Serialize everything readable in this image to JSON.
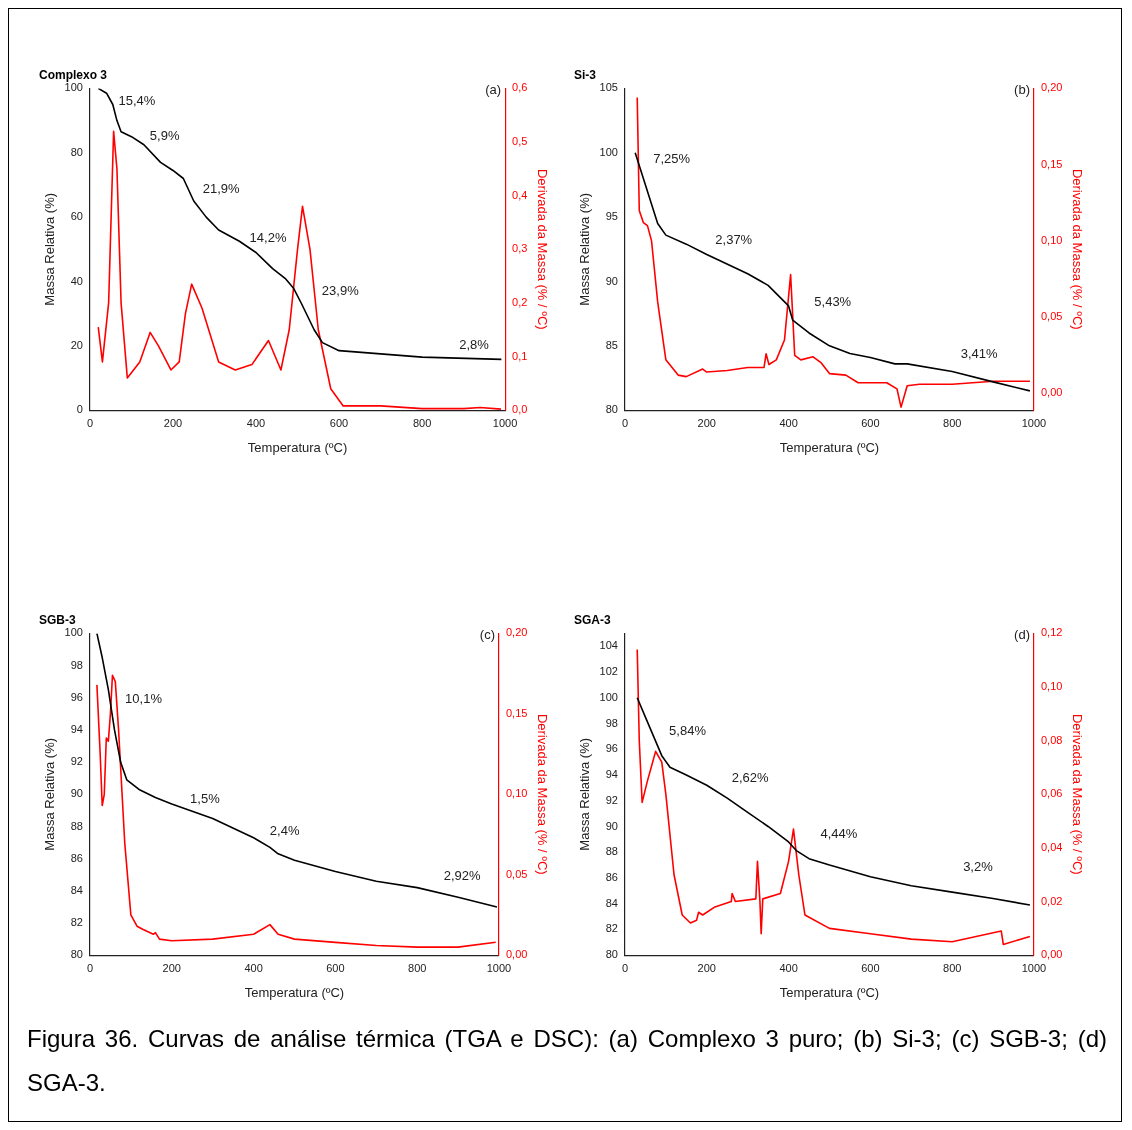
{
  "chart_data": [
    {
      "type": "line",
      "title": "Complexo 3",
      "xlabel": "Temperatura (ºC)",
      "ylabel": "Massa Relativa (%)",
      "y2label": "Derivada da Massa (% / ºC)",
      "xlim": [
        0,
        1000
      ],
      "xticks": [
        0,
        200,
        400,
        600,
        800,
        1000
      ],
      "ylim": [
        0,
        100
      ],
      "yticks": [
        0,
        20,
        40,
        60,
        80,
        100
      ],
      "y2lim": [
        0,
        0.6
      ],
      "y2ticks": [
        {
          "value": 0,
          "label": "0,0"
        },
        {
          "value": 0.1,
          "label": "0,1"
        },
        {
          "value": 0.2,
          "label": "0,2"
        },
        {
          "value": 0.3,
          "label": "0,3"
        },
        {
          "value": 0.4,
          "label": "0,4"
        },
        {
          "value": 0.5,
          "label": "0,5"
        },
        {
          "value": 0.6,
          "label": "0,6"
        }
      ],
      "marker": "none",
      "series": [
        {
          "color": "#000000",
          "x": [
            20,
            40,
            55,
            65,
            75,
            100,
            130,
            170,
            200,
            225,
            250,
            280,
            310,
            360,
            400,
            440,
            470,
            490,
            510,
            540,
            560,
            600,
            700,
            800,
            991
          ],
          "values": [
            100,
            98.5,
            95,
            90,
            86.5,
            85,
            82.5,
            77,
            74.5,
            72,
            65,
            60,
            56,
            52.5,
            49,
            44,
            41,
            38,
            33,
            25,
            21,
            18.5,
            17.5,
            16.5,
            15.8
          ]
        },
        {
          "color": "#ff0000",
          "axis": "y2",
          "x": [
            20,
            30,
            45,
            57,
            65,
            75,
            90,
            120,
            145,
            165,
            195,
            215,
            230,
            245,
            270,
            310,
            350,
            390,
            430,
            460,
            480,
            500,
            512,
            530,
            550,
            580,
            610,
            700,
            800,
            900,
            940,
            990
          ],
          "values": [
            0.155,
            0.09,
            0.2,
            0.52,
            0.45,
            0.2,
            0.06,
            0.09,
            0.145,
            0.12,
            0.075,
            0.09,
            0.18,
            0.235,
            0.19,
            0.09,
            0.075,
            0.085,
            0.13,
            0.075,
            0.15,
            0.3,
            0.38,
            0.3,
            0.15,
            0.04,
            0.008,
            0.008,
            0.003,
            0.003,
            0.005,
            0.002
          ]
        }
      ],
      "annotations": [
        "(a)",
        "15,4%",
        "5,9%",
        "21,9%",
        "14,2%",
        "23,9%",
        "2,8%"
      ]
    },
    {
      "type": "line",
      "title": "Si-3",
      "xlabel": "Temperatura (ºC)",
      "ylabel": "Massa Relativa (%)",
      "y2label": "Derivada da Massa (% / ºC)",
      "xlim": [
        0,
        1000
      ],
      "xticks": [
        0,
        200,
        400,
        600,
        800,
        1000
      ],
      "ylim": [
        80,
        105
      ],
      "yticks": [
        80,
        85,
        90,
        95,
        100,
        105
      ],
      "y2lim": [
        -0.011,
        0.2
      ],
      "y2ticks": [
        {
          "value": 0,
          "label": "0,00"
        },
        {
          "value": 0.05,
          "label": "0,05"
        },
        {
          "value": 0.1,
          "label": "0,10"
        },
        {
          "value": 0.15,
          "label": "0,15"
        },
        {
          "value": 0.2,
          "label": "0,20"
        }
      ],
      "marker": "none",
      "series": [
        {
          "color": "#000000",
          "x": [
            25,
            40,
            60,
            80,
            100,
            150,
            200,
            300,
            350,
            400,
            410,
            450,
            500,
            550,
            600,
            660,
            690,
            800,
            900,
            990
          ],
          "values": [
            100,
            98.5,
            96.5,
            94.5,
            93.6,
            92.9,
            92.1,
            90.6,
            89.7,
            88.1,
            87,
            86,
            85,
            84.4,
            84.1,
            83.6,
            83.6,
            83,
            82.2,
            81.5
          ]
        },
        {
          "color": "#ff0000",
          "axis": "y2",
          "x": [
            30,
            35,
            45,
            55,
            65,
            80,
            100,
            130,
            150,
            190,
            200,
            250,
            300,
            340,
            345,
            352,
            370,
            390,
            405,
            415,
            430,
            460,
            480,
            500,
            540,
            570,
            640,
            665,
            675,
            690,
            720,
            800,
            900,
            990
          ],
          "values": [
            0.194,
            0.12,
            0.112,
            0.11,
            0.1,
            0.06,
            0.022,
            0.012,
            0.011,
            0.016,
            0.014,
            0.015,
            0.017,
            0.017,
            0.026,
            0.019,
            0.022,
            0.035,
            0.078,
            0.025,
            0.022,
            0.024,
            0.02,
            0.013,
            0.012,
            0.007,
            0.007,
            0.003,
            -0.009,
            0.005,
            0.006,
            0.006,
            0.008,
            0.008
          ]
        }
      ],
      "annotations": [
        "(b)",
        "7,25%",
        "2,37%",
        "5,43%",
        "3,41%"
      ]
    },
    {
      "type": "line",
      "title": "SGB-3",
      "xlabel": "Temperatura (ºC)",
      "ylabel": "Massa Relativa (%)",
      "y2label": "Derivada da Massa (% / ºC)",
      "xlim": [
        0,
        1000
      ],
      "xticks": [
        0,
        200,
        400,
        600,
        800,
        1000
      ],
      "ylim": [
        80,
        100
      ],
      "yticks": [
        80,
        82,
        84,
        86,
        88,
        90,
        92,
        94,
        96,
        98,
        100
      ],
      "y2lim": [
        0,
        0.2
      ],
      "y2ticks": [
        {
          "value": 0,
          "label": "0,00"
        },
        {
          "value": 0.05,
          "label": "0,05"
        },
        {
          "value": 0.1,
          "label": "0,10"
        },
        {
          "value": 0.15,
          "label": "0,15"
        },
        {
          "value": 0.2,
          "label": "0,20"
        }
      ],
      "marker": "none",
      "series": [
        {
          "color": "#000000",
          "x": [
            17,
            30,
            45,
            60,
            75,
            90,
            120,
            160,
            200,
            300,
            400,
            440,
            460,
            500,
            600,
            700,
            800,
            900,
            995
          ],
          "values": [
            100,
            98.5,
            96.5,
            94,
            92,
            90.9,
            90.3,
            89.8,
            89.4,
            88.5,
            87.3,
            86.7,
            86.3,
            85.9,
            85.2,
            84.6,
            84.2,
            83.6,
            83
          ]
        },
        {
          "color": "#ff0000",
          "axis": "y2",
          "x": [
            17,
            25,
            30,
            35,
            40,
            45,
            50,
            55,
            62,
            70,
            85,
            100,
            115,
            130,
            155,
            160,
            170,
            200,
            300,
            400,
            440,
            460,
            500,
            600,
            700,
            800,
            900,
            992
          ],
          "values": [
            0.168,
            0.125,
            0.093,
            0.1,
            0.135,
            0.133,
            0.15,
            0.174,
            0.17,
            0.14,
            0.07,
            0.025,
            0.018,
            0.016,
            0.013,
            0.014,
            0.01,
            0.009,
            0.01,
            0.013,
            0.019,
            0.013,
            0.01,
            0.008,
            0.006,
            0.005,
            0.005,
            0.008
          ]
        }
      ],
      "annotations": [
        "(c)",
        "10,1%",
        "1,5%",
        "2,4%",
        "2,92%"
      ]
    },
    {
      "type": "line",
      "title": "SGA-3",
      "xlabel": "Temperatura (ºC)",
      "ylabel": "Massa Relativa (%)",
      "y2label": "Derivada da Massa (% / ºC)",
      "xlim": [
        0,
        1000
      ],
      "xticks": [
        0,
        200,
        400,
        600,
        800,
        1000
      ],
      "ylim": [
        80,
        105
      ],
      "yticks": [
        80,
        82,
        84,
        86,
        88,
        90,
        92,
        94,
        96,
        98,
        100,
        102,
        104
      ],
      "y2lim": [
        0,
        0.12
      ],
      "y2ticks": [
        {
          "value": 0,
          "label": "0,00"
        },
        {
          "value": 0.02,
          "label": "0,02"
        },
        {
          "value": 0.04,
          "label": "0,04"
        },
        {
          "value": 0.06,
          "label": "0,06"
        },
        {
          "value": 0.08,
          "label": "0,08"
        },
        {
          "value": 0.1,
          "label": "0,10"
        },
        {
          "value": 0.12,
          "label": "0,12"
        }
      ],
      "marker": "none",
      "series": [
        {
          "color": "#000000",
          "x": [
            30,
            50,
            70,
            90,
            110,
            150,
            200,
            250,
            300,
            350,
            400,
            420,
            450,
            500,
            600,
            700,
            800,
            900,
            990
          ],
          "values": [
            100,
            98.5,
            97,
            95.5,
            94.6,
            94,
            93.2,
            92.2,
            91.1,
            90,
            88.8,
            88.1,
            87.5,
            87,
            86.1,
            85.4,
            84.9,
            84.4,
            83.9
          ]
        },
        {
          "color": "#ff0000",
          "axis": "y2",
          "x": [
            30,
            35,
            42,
            55,
            75,
            90,
            100,
            120,
            140,
            160,
            175,
            180,
            190,
            220,
            260,
            262,
            270,
            320,
            324,
            330,
            333,
            337,
            380,
            400,
            412,
            425,
            440,
            500,
            600,
            700,
            800,
            920,
            925,
            990
          ],
          "values": [
            0.114,
            0.08,
            0.057,
            0.065,
            0.076,
            0.072,
            0.06,
            0.03,
            0.015,
            0.012,
            0.013,
            0.016,
            0.015,
            0.018,
            0.02,
            0.023,
            0.02,
            0.021,
            0.035,
            0.02,
            0.008,
            0.021,
            0.023,
            0.035,
            0.047,
            0.03,
            0.015,
            0.01,
            0.008,
            0.006,
            0.005,
            0.009,
            0.004,
            0.007
          ]
        }
      ],
      "annotations": [
        "(d)",
        "5,84%",
        "2,62%",
        "4,44%",
        "3,2%"
      ]
    },
    {
      "type": "other",
      "annotations": [
        "Figura 36. Curvas de análise térmica (TGA e DSC): (a) Complexo 3 puro; (b) Si-3; (c) SGB-3; (d) SGA-3."
      ]
    }
  ]
}
